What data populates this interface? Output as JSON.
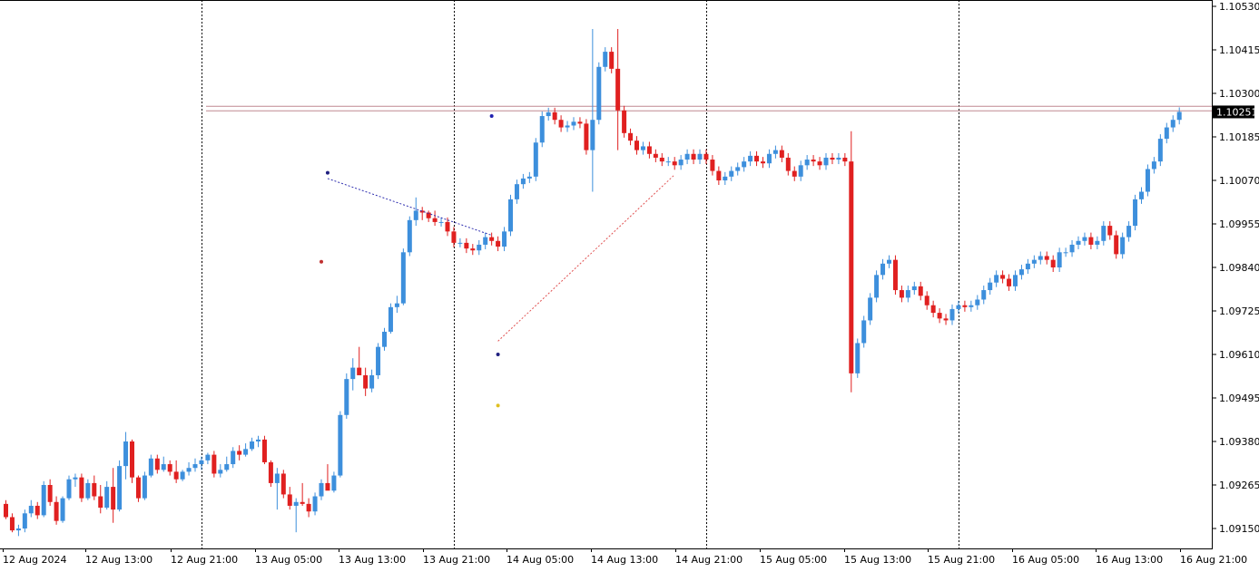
{
  "chart_data": {
    "type": "candlestick",
    "title": "",
    "xlabel": "",
    "ylabel": "",
    "ylim": [
      1.0909,
      1.1058
    ],
    "y_ticks": [
      "1.10530",
      "1.10415",
      "1.10300",
      "1.10185",
      "1.10070",
      "1.09955",
      "1.09840",
      "1.09725",
      "1.09610",
      "1.09495",
      "1.09380",
      "1.09265",
      "1.09150"
    ],
    "x_tick_labels": [
      "12 Aug 2024",
      "12 Aug 13:00",
      "12 Aug 21:00",
      "13 Aug 05:00",
      "13 Aug 13:00",
      "13 Aug 21:00",
      "14 Aug 05:00",
      "14 Aug 13:00",
      "14 Aug 21:00",
      "15 Aug 05:00",
      "15 Aug 13:00",
      "15 Aug 21:00",
      "16 Aug 05:00",
      "16 Aug 13:00",
      "16 Aug 21:00"
    ],
    "current_price": "1.10251",
    "current_price_value": 1.10251,
    "resistance_levels": [
      1.10266,
      1.10254
    ],
    "up_color": "#3d8fdc",
    "down_color": "#e02020",
    "grid": "vertical-dotted-every-8-bars",
    "legend": "none",
    "trend_lines": [
      {
        "color": "#3030b0",
        "from": {
          "bar": 51,
          "price": 1.10075
        },
        "to": {
          "bar": 77,
          "price": 1.09925
        }
      },
      {
        "color": "#e05050",
        "from": {
          "bar": 78,
          "price": 1.09645
        },
        "to": {
          "bar": 106,
          "price": 1.10085
        }
      }
    ],
    "markers": [
      {
        "bar": 51,
        "price": 1.1009,
        "color": "#202080"
      },
      {
        "bar": 50,
        "price": 1.09855,
        "color": "#c03030"
      },
      {
        "bar": 77,
        "price": 1.1024,
        "color": "#2020b0"
      },
      {
        "bar": 78,
        "price": 1.0961,
        "color": "#202080"
      },
      {
        "bar": 78,
        "price": 1.09475,
        "color": "#e0c020"
      }
    ],
    "candles": [
      {
        "o": 1.09215,
        "h": 1.09225,
        "l": 1.09175,
        "c": 1.0918
      },
      {
        "o": 1.0918,
        "h": 1.0919,
        "l": 1.0914,
        "c": 1.09145
      },
      {
        "o": 1.09145,
        "h": 1.0916,
        "l": 1.0913,
        "c": 1.0915
      },
      {
        "o": 1.0915,
        "h": 1.092,
        "l": 1.0914,
        "c": 1.0919
      },
      {
        "o": 1.0919,
        "h": 1.09225,
        "l": 1.0918,
        "c": 1.0921
      },
      {
        "o": 1.0921,
        "h": 1.0922,
        "l": 1.09175,
        "c": 1.09185
      },
      {
        "o": 1.09185,
        "h": 1.09275,
        "l": 1.0918,
        "c": 1.09265
      },
      {
        "o": 1.09265,
        "h": 1.0928,
        "l": 1.0921,
        "c": 1.0922
      },
      {
        "o": 1.0922,
        "h": 1.09235,
        "l": 1.0916,
        "c": 1.0917
      },
      {
        "o": 1.0917,
        "h": 1.09235,
        "l": 1.09165,
        "c": 1.0923
      },
      {
        "o": 1.0923,
        "h": 1.0929,
        "l": 1.09225,
        "c": 1.0928
      },
      {
        "o": 1.0928,
        "h": 1.09295,
        "l": 1.0926,
        "c": 1.09285
      },
      {
        "o": 1.09285,
        "h": 1.09295,
        "l": 1.0922,
        "c": 1.0923
      },
      {
        "o": 1.0923,
        "h": 1.0928,
        "l": 1.09225,
        "c": 1.0927
      },
      {
        "o": 1.0927,
        "h": 1.0929,
        "l": 1.09225,
        "c": 1.09235
      },
      {
        "o": 1.09235,
        "h": 1.09265,
        "l": 1.0919,
        "c": 1.09205
      },
      {
        "o": 1.09205,
        "h": 1.09275,
        "l": 1.092,
        "c": 1.0926
      },
      {
        "o": 1.0926,
        "h": 1.0931,
        "l": 1.09165,
        "c": 1.092
      },
      {
        "o": 1.092,
        "h": 1.0933,
        "l": 1.09195,
        "c": 1.09315
      },
      {
        "o": 1.09315,
        "h": 1.09405,
        "l": 1.0928,
        "c": 1.0938
      },
      {
        "o": 1.0938,
        "h": 1.09385,
        "l": 1.0927,
        "c": 1.09285
      },
      {
        "o": 1.09285,
        "h": 1.0929,
        "l": 1.0922,
        "c": 1.0923
      },
      {
        "o": 1.0923,
        "h": 1.093,
        "l": 1.09225,
        "c": 1.0929
      },
      {
        "o": 1.0929,
        "h": 1.09345,
        "l": 1.09285,
        "c": 1.09335
      },
      {
        "o": 1.09335,
        "h": 1.09345,
        "l": 1.09295,
        "c": 1.09305
      },
      {
        "o": 1.09305,
        "h": 1.0934,
        "l": 1.093,
        "c": 1.0932
      },
      {
        "o": 1.0932,
        "h": 1.0933,
        "l": 1.0929,
        "c": 1.093
      },
      {
        "o": 1.093,
        "h": 1.0933,
        "l": 1.0927,
        "c": 1.0928
      },
      {
        "o": 1.0928,
        "h": 1.09305,
        "l": 1.09275,
        "c": 1.093
      },
      {
        "o": 1.093,
        "h": 1.09325,
        "l": 1.0929,
        "c": 1.0931
      },
      {
        "o": 1.0931,
        "h": 1.09335,
        "l": 1.093,
        "c": 1.0932
      },
      {
        "o": 1.0932,
        "h": 1.0934,
        "l": 1.09305,
        "c": 1.0933
      },
      {
        "o": 1.0933,
        "h": 1.0935,
        "l": 1.0932,
        "c": 1.09345
      },
      {
        "o": 1.09345,
        "h": 1.09355,
        "l": 1.09285,
        "c": 1.09295
      },
      {
        "o": 1.09295,
        "h": 1.0932,
        "l": 1.09285,
        "c": 1.09305
      },
      {
        "o": 1.09305,
        "h": 1.0934,
        "l": 1.093,
        "c": 1.0932
      },
      {
        "o": 1.0932,
        "h": 1.09365,
        "l": 1.0931,
        "c": 1.09355
      },
      {
        "o": 1.09355,
        "h": 1.0937,
        "l": 1.0933,
        "c": 1.09345
      },
      {
        "o": 1.09345,
        "h": 1.09375,
        "l": 1.0934,
        "c": 1.0936
      },
      {
        "o": 1.0936,
        "h": 1.0939,
        "l": 1.09355,
        "c": 1.0938
      },
      {
        "o": 1.0938,
        "h": 1.09395,
        "l": 1.09365,
        "c": 1.09385
      },
      {
        "o": 1.09385,
        "h": 1.09395,
        "l": 1.0932,
        "c": 1.09325
      },
      {
        "o": 1.09325,
        "h": 1.0933,
        "l": 1.0926,
        "c": 1.0927
      },
      {
        "o": 1.0927,
        "h": 1.0931,
        "l": 1.092,
        "c": 1.09295
      },
      {
        "o": 1.09295,
        "h": 1.09305,
        "l": 1.0923,
        "c": 1.0924
      },
      {
        "o": 1.0924,
        "h": 1.0926,
        "l": 1.092,
        "c": 1.0921
      },
      {
        "o": 1.0921,
        "h": 1.0923,
        "l": 1.0914,
        "c": 1.0922
      },
      {
        "o": 1.0922,
        "h": 1.0927,
        "l": 1.0921,
        "c": 1.09215
      },
      {
        "o": 1.09215,
        "h": 1.0923,
        "l": 1.0918,
        "c": 1.09195
      },
      {
        "o": 1.09195,
        "h": 1.09245,
        "l": 1.09185,
        "c": 1.09235
      },
      {
        "o": 1.09235,
        "h": 1.0928,
        "l": 1.09225,
        "c": 1.0927
      },
      {
        "o": 1.0927,
        "h": 1.0932,
        "l": 1.09255,
        "c": 1.0925
      },
      {
        "o": 1.0925,
        "h": 1.093,
        "l": 1.09245,
        "c": 1.0929
      },
      {
        "o": 1.0929,
        "h": 1.0946,
        "l": 1.09285,
        "c": 1.0945
      },
      {
        "o": 1.0945,
        "h": 1.0956,
        "l": 1.0944,
        "c": 1.09545
      },
      {
        "o": 1.09545,
        "h": 1.096,
        "l": 1.09515,
        "c": 1.09575
      },
      {
        "o": 1.09575,
        "h": 1.0963,
        "l": 1.0956,
        "c": 1.09555
      },
      {
        "o": 1.09555,
        "h": 1.09575,
        "l": 1.095,
        "c": 1.0952
      },
      {
        "o": 1.0952,
        "h": 1.0957,
        "l": 1.0951,
        "c": 1.09555
      },
      {
        "o": 1.09555,
        "h": 1.0964,
        "l": 1.09545,
        "c": 1.0963
      },
      {
        "o": 1.0963,
        "h": 1.0968,
        "l": 1.0962,
        "c": 1.0967
      },
      {
        "o": 1.0967,
        "h": 1.09745,
        "l": 1.09665,
        "c": 1.09735
      },
      {
        "o": 1.09735,
        "h": 1.09765,
        "l": 1.0972,
        "c": 1.09745
      },
      {
        "o": 1.09745,
        "h": 1.0989,
        "l": 1.0974,
        "c": 1.0988
      },
      {
        "o": 1.0988,
        "h": 1.09975,
        "l": 1.0987,
        "c": 1.09965
      },
      {
        "o": 1.09965,
        "h": 1.10025,
        "l": 1.0995,
        "c": 1.0999
      },
      {
        "o": 1.0999,
        "h": 1.1,
        "l": 1.09965,
        "c": 1.09985
      },
      {
        "o": 1.09985,
        "h": 1.0999,
        "l": 1.0996,
        "c": 1.0997
      },
      {
        "o": 1.0997,
        "h": 1.0999,
        "l": 1.0995,
        "c": 1.0996
      }
    ]
  }
}
